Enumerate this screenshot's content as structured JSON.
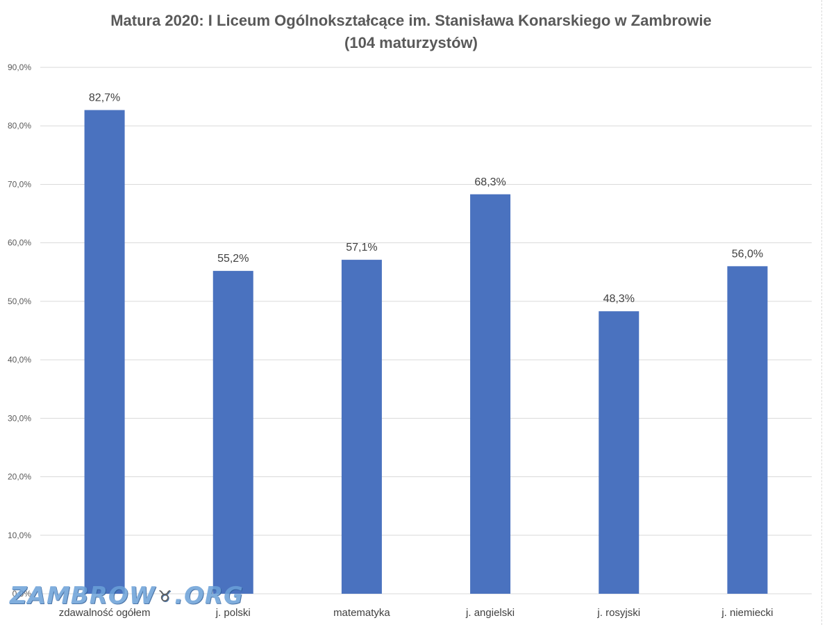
{
  "chart_data": {
    "type": "bar",
    "title": "Matura 2020: I Liceum Ogólnokształcące im. Stanisława Konarskiego w Zambrowie",
    "subtitle": "(104 maturzystów)",
    "categories": [
      "zdawalność ogółem",
      "j. polski",
      "matematyka",
      "j. angielski",
      "j. rosyjski",
      "j. niemiecki"
    ],
    "values": [
      82.7,
      55.2,
      57.1,
      68.3,
      48.3,
      56.0
    ],
    "data_labels": [
      "82,7%",
      "55,2%",
      "57,1%",
      "68,3%",
      "48,3%",
      "56,0%"
    ],
    "yticks": [
      0,
      10,
      20,
      30,
      40,
      50,
      60,
      70,
      80,
      90
    ],
    "ytick_labels": [
      "0,0%",
      "10,0%",
      "20,0%",
      "30,0%",
      "40,0%",
      "50,0%",
      "60,0%",
      "70,0%",
      "80,0%",
      "90,0%"
    ],
    "ylim": [
      0,
      90
    ],
    "grid": true,
    "legend": "none",
    "bar_color": "#4a72bf",
    "grid_color": "#d9d9d9"
  },
  "watermark": {
    "text_left": "ZAMBROW",
    "text_right": ".ORG",
    "icon": "bison-icon"
  }
}
